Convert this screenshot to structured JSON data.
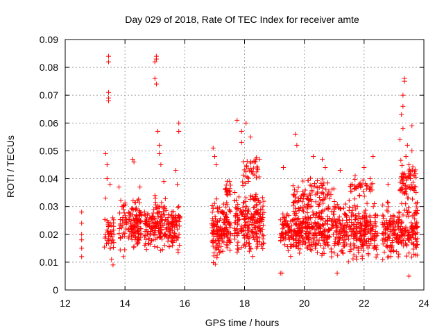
{
  "chart_data": {
    "type": "scatter",
    "title": "Day 029 of 2018, Rate Of TEC Index for receiver amte",
    "xlabel": "GPS time / hours",
    "ylabel": "ROTI / TECUs",
    "xlim": [
      12,
      24
    ],
    "ylim": [
      0,
      0.09
    ],
    "xticks": [
      "12",
      "14",
      "16",
      "18",
      "20",
      "22",
      "24"
    ],
    "yticks": [
      "0",
      "0.01",
      "0.02",
      "0.03",
      "0.04",
      "0.05",
      "0.06",
      "0.07",
      "0.08",
      "0.09"
    ],
    "grid": true,
    "marker": "+",
    "marker_color": "#ff0000",
    "series": [
      {
        "name": "ROTI",
        "points": [
          [
            12.55,
            0.028
          ],
          [
            12.55,
            0.024
          ],
          [
            12.55,
            0.02
          ],
          [
            12.55,
            0.018
          ],
          [
            12.55,
            0.015
          ],
          [
            12.55,
            0.012
          ],
          [
            13.45,
            0.084
          ],
          [
            13.45,
            0.082
          ],
          [
            13.45,
            0.071
          ],
          [
            13.45,
            0.069
          ],
          [
            13.45,
            0.068
          ],
          [
            13.35,
            0.049
          ],
          [
            13.4,
            0.045
          ],
          [
            13.4,
            0.04
          ],
          [
            13.5,
            0.038
          ],
          [
            13.35,
            0.033
          ],
          [
            13.4,
            0.025
          ],
          [
            13.45,
            0.02
          ],
          [
            13.5,
            0.015
          ],
          [
            13.55,
            0.011
          ],
          [
            13.6,
            0.009
          ],
          [
            13.8,
            0.037
          ],
          [
            13.9,
            0.03
          ],
          [
            13.95,
            0.012
          ],
          [
            14.25,
            0.047
          ],
          [
            14.3,
            0.046
          ],
          [
            14.5,
            0.037
          ],
          [
            14.65,
            0.027
          ],
          [
            14.75,
            0.02
          ],
          [
            15.05,
            0.084
          ],
          [
            15.05,
            0.083
          ],
          [
            15.0,
            0.082
          ],
          [
            15.0,
            0.076
          ],
          [
            15.05,
            0.074
          ],
          [
            15.1,
            0.057
          ],
          [
            15.15,
            0.052
          ],
          [
            15.15,
            0.049
          ],
          [
            15.2,
            0.045
          ],
          [
            15.3,
            0.039
          ],
          [
            15.7,
            0.043
          ],
          [
            15.8,
            0.06
          ],
          [
            15.8,
            0.057
          ],
          [
            15.75,
            0.038
          ],
          [
            15.8,
            0.03
          ],
          [
            16.95,
            0.051
          ],
          [
            17.0,
            0.048
          ],
          [
            17.05,
            0.045
          ],
          [
            17.5,
            0.039
          ],
          [
            17.75,
            0.061
          ],
          [
            17.9,
            0.057
          ],
          [
            17.9,
            0.053
          ],
          [
            18.05,
            0.06
          ],
          [
            18.2,
            0.055
          ],
          [
            18.5,
            0.047
          ],
          [
            19.3,
            0.044
          ],
          [
            19.2,
            0.006
          ],
          [
            19.25,
            0.006
          ],
          [
            19.7,
            0.056
          ],
          [
            19.75,
            0.052
          ],
          [
            20.3,
            0.048
          ],
          [
            20.6,
            0.047
          ],
          [
            20.7,
            0.044
          ],
          [
            21.2,
            0.043
          ],
          [
            21.1,
            0.006
          ],
          [
            21.6,
            0.038
          ],
          [
            21.7,
            0.041
          ],
          [
            22.0,
            0.044
          ],
          [
            22.3,
            0.048
          ],
          [
            22.2,
            0.04
          ],
          [
            22.8,
            0.038
          ],
          [
            23.35,
            0.076
          ],
          [
            23.35,
            0.075
          ],
          [
            23.3,
            0.07
          ],
          [
            23.3,
            0.066
          ],
          [
            23.25,
            0.063
          ],
          [
            23.3,
            0.058
          ],
          [
            23.6,
            0.059
          ],
          [
            23.2,
            0.054
          ],
          [
            23.45,
            0.052
          ],
          [
            23.4,
            0.048
          ],
          [
            23.5,
            0.045
          ],
          [
            23.6,
            0.05
          ],
          [
            23.55,
            0.04
          ],
          [
            23.5,
            0.005
          ]
        ],
        "clusters": [
          {
            "x": [
              13.3,
              13.65
            ],
            "y": [
              0.011,
              0.03
            ],
            "n": 40
          },
          {
            "x": [
              13.8,
              14.05
            ],
            "y": [
              0.013,
              0.036
            ],
            "n": 35
          },
          {
            "x": [
              14.1,
              14.55
            ],
            "y": [
              0.011,
              0.035
            ],
            "n": 110
          },
          {
            "x": [
              14.65,
              15.0
            ],
            "y": [
              0.012,
              0.032
            ],
            "n": 70
          },
          {
            "x": [
              15.0,
              15.85
            ],
            "y": [
              0.01,
              0.036
            ],
            "n": 170
          },
          {
            "x": [
              16.9,
              17.55
            ],
            "y": [
              0.008,
              0.035
            ],
            "n": 160
          },
          {
            "x": [
              17.35,
              17.55
            ],
            "y": [
              0.03,
              0.04
            ],
            "n": 20
          },
          {
            "x": [
              17.65,
              18.65
            ],
            "y": [
              0.009,
              0.04
            ],
            "n": 230
          },
          {
            "x": [
              17.9,
              18.5
            ],
            "y": [
              0.035,
              0.05
            ],
            "n": 35
          },
          {
            "x": [
              19.2,
              19.9
            ],
            "y": [
              0.009,
              0.034
            ],
            "n": 150
          },
          {
            "x": [
              19.6,
              20.2
            ],
            "y": [
              0.025,
              0.043
            ],
            "n": 45
          },
          {
            "x": [
              19.9,
              21.0
            ],
            "y": [
              0.01,
              0.034
            ],
            "n": 220
          },
          {
            "x": [
              20.2,
              21.0
            ],
            "y": [
              0.03,
              0.042
            ],
            "n": 40
          },
          {
            "x": [
              21.0,
              22.45
            ],
            "y": [
              0.008,
              0.035
            ],
            "n": 300
          },
          {
            "x": [
              21.5,
              22.3
            ],
            "y": [
              0.032,
              0.042
            ],
            "n": 35
          },
          {
            "x": [
              22.6,
              23.8
            ],
            "y": [
              0.009,
              0.034
            ],
            "n": 240
          },
          {
            "x": [
              23.2,
              23.75
            ],
            "y": [
              0.03,
              0.048
            ],
            "n": 70
          }
        ]
      }
    ]
  }
}
